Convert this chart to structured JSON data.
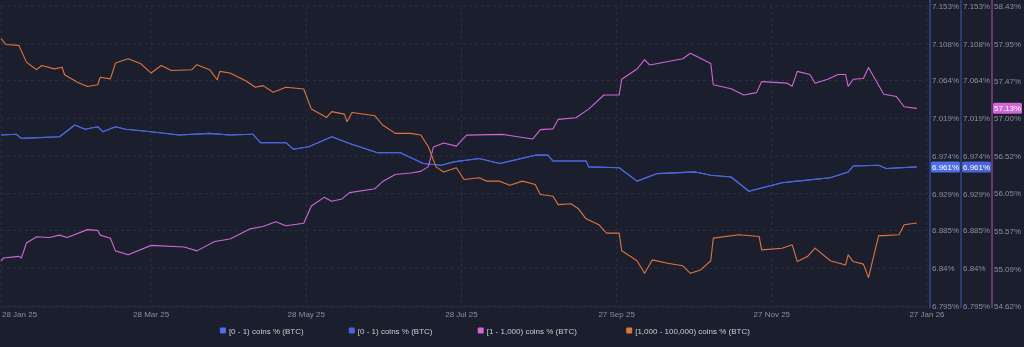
{
  "chart_data": {
    "type": "line",
    "xlim": [
      "2025-01-28",
      "2026-01-27"
    ],
    "xticks": [
      {
        "value": "2025-01-28",
        "label": "28 Jan 25"
      },
      {
        "value": "2025-03-28",
        "label": "28 Mar 25"
      },
      {
        "value": "2025-05-28",
        "label": "28 May 25"
      },
      {
        "value": "2025-07-28",
        "label": "28 Jul 25"
      },
      {
        "value": "2025-09-27",
        "label": "27 Sep 25"
      },
      {
        "value": "2025-11-27",
        "label": "27 Nov 25"
      },
      {
        "value": "2026-01-27",
        "label": "27 Jan 26"
      }
    ],
    "ylim": [
      6.795,
      7.153
    ],
    "yticks": [
      {
        "value": 6.795,
        "label": "6.795%"
      },
      {
        "value": 6.84,
        "label": "6.84%"
      },
      {
        "value": 6.885,
        "label": "6.885%"
      },
      {
        "value": 6.929,
        "label": "6.929%"
      },
      {
        "value": 6.974,
        "label": "6.974%"
      },
      {
        "value": 7.019,
        "label": "7.019%"
      },
      {
        "value": 7.064,
        "label": "7.064%"
      },
      {
        "value": 7.108,
        "label": "7.108%"
      },
      {
        "value": 7.153,
        "label": "7.153%"
      }
    ],
    "y2lim": [
      6.795,
      7.153
    ],
    "y2ticks": [
      {
        "value": 6.795,
        "label": "6.795%"
      },
      {
        "value": 6.84,
        "label": "6.84%"
      },
      {
        "value": 6.885,
        "label": "6.885%"
      },
      {
        "value": 6.929,
        "label": "6.929%"
      },
      {
        "value": 6.974,
        "label": "6.974%"
      },
      {
        "value": 7.019,
        "label": "7.019%"
      },
      {
        "value": 7.064,
        "label": "7.064%"
      },
      {
        "value": 7.108,
        "label": "7.108%"
      },
      {
        "value": 7.153,
        "label": "7.153%"
      }
    ],
    "y3lim": [
      54.62,
      58.43
    ],
    "y3ticks": [
      {
        "value": 54.62,
        "label": "54.62%"
      },
      {
        "value": 55.09,
        "label": "55.09%"
      },
      {
        "value": 55.57,
        "label": "55.57%"
      },
      {
        "value": 56.05,
        "label": "56.05%"
      },
      {
        "value": 56.52,
        "label": "56.52%"
      },
      {
        "value": 57.0,
        "label": "57.00%"
      },
      {
        "value": 57.47,
        "label": "57.47%"
      },
      {
        "value": 57.95,
        "label": "57.95%"
      },
      {
        "value": 58.43,
        "label": "58.43%"
      }
    ],
    "grid": true,
    "legend": "bottom",
    "annotations": [
      "6.961%",
      "57.13%"
    ],
    "series": [
      {
        "name": "[0 - 1) coins % (BTC)",
        "color": "#4f6fe8",
        "axis": "y",
        "x": [
          "2025-01-28",
          "2025-02-03",
          "2025-02-05",
          "2025-02-20",
          "2025-02-26",
          "2025-03-02",
          "2025-03-07",
          "2025-03-09",
          "2025-03-14",
          "2025-03-18",
          "2025-03-28",
          "2025-04-08",
          "2025-04-20",
          "2025-04-28",
          "2025-05-07",
          "2025-05-10",
          "2025-05-20",
          "2025-05-23",
          "2025-05-29",
          "2025-06-07",
          "2025-06-14",
          "2025-06-25",
          "2025-07-04",
          "2025-07-13",
          "2025-07-20",
          "2025-07-25",
          "2025-08-04",
          "2025-08-12",
          "2025-08-26",
          "2025-08-31",
          "2025-09-02",
          "2025-09-15",
          "2025-09-16",
          "2025-09-28",
          "2025-10-05",
          "2025-10-13",
          "2025-10-28",
          "2025-11-03",
          "2025-11-11",
          "2025-11-18",
          "2025-12-01",
          "2025-12-07",
          "2025-12-20",
          "2025-12-27",
          "2025-12-29",
          "2026-01-08",
          "2026-01-11",
          "2026-01-23"
        ],
        "values": [
          6.999,
          7.0,
          6.995,
          6.997,
          7.011,
          7.006,
          7.009,
          7.003,
          7.009,
          7.006,
          7.003,
          6.999,
          7.001,
          6.999,
          7.0,
          6.99,
          6.99,
          6.982,
          6.985,
          6.997,
          6.989,
          6.978,
          6.978,
          6.965,
          6.963,
          6.967,
          6.971,
          6.965,
          6.975,
          6.975,
          6.968,
          6.968,
          6.961,
          6.96,
          6.944,
          6.953,
          6.955,
          6.951,
          6.949,
          6.932,
          6.942,
          6.944,
          6.948,
          6.955,
          6.962,
          6.963,
          6.959,
          6.961
        ],
        "value_labels": [
          null,
          null,
          null,
          null,
          null,
          null,
          null,
          null,
          null,
          null,
          null,
          null,
          null,
          null,
          null,
          null,
          null,
          null,
          null,
          null,
          null,
          null,
          null,
          null,
          null,
          null,
          null,
          null,
          null,
          null,
          null,
          null,
          null,
          null,
          null,
          null,
          null,
          null,
          null,
          null,
          null,
          null,
          null,
          null,
          null,
          null,
          null,
          "6.961%"
        ]
      },
      {
        "name": "[0 - 1) coins % (BTC)",
        "color": "#4a64d8",
        "axis": "y2",
        "x": [
          "2025-01-28",
          "2025-02-03",
          "2025-02-05",
          "2025-02-20",
          "2025-02-26",
          "2025-03-02",
          "2025-03-07",
          "2025-03-09",
          "2025-03-14",
          "2025-03-18",
          "2025-03-28",
          "2025-04-08",
          "2025-04-20",
          "2025-04-28",
          "2025-05-07",
          "2025-05-10",
          "2025-05-20",
          "2025-05-23",
          "2025-05-29",
          "2025-06-07",
          "2025-06-14",
          "2025-06-25",
          "2025-07-04",
          "2025-07-13",
          "2025-07-20",
          "2025-07-25",
          "2025-08-04",
          "2025-08-12",
          "2025-08-26",
          "2025-08-31",
          "2025-09-02",
          "2025-09-15",
          "2025-09-16",
          "2025-09-28",
          "2025-10-05",
          "2025-10-13",
          "2025-10-28",
          "2025-11-03",
          "2025-11-11",
          "2025-11-18",
          "2025-12-01",
          "2025-12-07",
          "2025-12-20",
          "2025-12-27",
          "2025-12-29",
          "2026-01-08",
          "2026-01-11",
          "2026-01-23"
        ],
        "values": [
          6.999,
          7.0,
          6.995,
          6.997,
          7.011,
          7.006,
          7.009,
          7.003,
          7.009,
          7.006,
          7.003,
          6.999,
          7.001,
          6.999,
          7.0,
          6.99,
          6.99,
          6.982,
          6.985,
          6.997,
          6.989,
          6.978,
          6.978,
          6.965,
          6.963,
          6.967,
          6.971,
          6.965,
          6.975,
          6.975,
          6.968,
          6.968,
          6.961,
          6.96,
          6.944,
          6.953,
          6.955,
          6.951,
          6.949,
          6.932,
          6.942,
          6.944,
          6.948,
          6.955,
          6.962,
          6.963,
          6.959,
          6.961
        ]
      },
      {
        "name": "[1 - 1,000) coins % (BTC)",
        "color": "#d166d6",
        "axis": "y3",
        "x": [
          "2025-01-28",
          "2025-01-29",
          "2025-02-04",
          "2025-02-05",
          "2025-02-07",
          "2025-02-11",
          "2025-02-16",
          "2025-02-20",
          "2025-02-23",
          "2025-03-03",
          "2025-03-07",
          "2025-03-08",
          "2025-03-12",
          "2025-03-14",
          "2025-03-19",
          "2025-03-28",
          "2025-04-10",
          "2025-04-15",
          "2025-04-22",
          "2025-04-28",
          "2025-05-06",
          "2025-05-11",
          "2025-05-16",
          "2025-05-20",
          "2025-05-27",
          "2025-05-30",
          "2025-06-04",
          "2025-06-07",
          "2025-06-11",
          "2025-06-14",
          "2025-06-24",
          "2025-06-27",
          "2025-07-02",
          "2025-07-08",
          "2025-07-12",
          "2025-07-15",
          "2025-07-17",
          "2025-07-21",
          "2025-07-26",
          "2025-07-30",
          "2025-08-13",
          "2025-08-25",
          "2025-08-28",
          "2025-09-02",
          "2025-09-04",
          "2025-09-11",
          "2025-09-16",
          "2025-09-22",
          "2025-09-28",
          "2025-09-29",
          "2025-10-05",
          "2025-10-08",
          "2025-10-10",
          "2025-10-23",
          "2025-10-26",
          "2025-11-03",
          "2025-11-04",
          "2025-11-11",
          "2025-11-16",
          "2025-11-21",
          "2025-11-23",
          "2025-12-03",
          "2025-12-05",
          "2025-12-07",
          "2025-12-12",
          "2025-12-14",
          "2025-12-19",
          "2025-12-23",
          "2025-12-26",
          "2025-12-27",
          "2025-12-29",
          "2026-01-02",
          "2026-01-04",
          "2026-01-10",
          "2026-01-15",
          "2026-01-18",
          "2026-01-23"
        ],
        "values": [
          55.19,
          55.23,
          55.25,
          55.23,
          55.42,
          55.5,
          55.49,
          55.52,
          55.49,
          55.59,
          55.58,
          55.52,
          55.48,
          55.32,
          55.27,
          55.39,
          55.37,
          55.32,
          55.44,
          55.47,
          55.6,
          55.63,
          55.69,
          55.64,
          55.67,
          55.89,
          56.0,
          55.95,
          55.98,
          56.06,
          56.11,
          56.2,
          56.29,
          56.31,
          56.33,
          56.39,
          56.64,
          56.69,
          56.65,
          56.79,
          56.8,
          56.74,
          56.86,
          56.87,
          56.99,
          57.01,
          57.12,
          57.3,
          57.3,
          57.5,
          57.63,
          57.75,
          57.68,
          57.76,
          57.83,
          57.7,
          57.43,
          57.38,
          57.3,
          57.33,
          57.47,
          57.45,
          57.41,
          57.6,
          57.56,
          57.45,
          57.5,
          57.56,
          57.56,
          57.41,
          57.5,
          57.51,
          57.65,
          57.31,
          57.28,
          57.15,
          57.13
        ]
      },
      {
        "name": "[1,000 - 100,000) coins % (BTC)",
        "color": "#e0743c",
        "axis": "y",
        "x": [
          "2025-01-28",
          "2025-01-30",
          "2025-02-04",
          "2025-02-07",
          "2025-02-11",
          "2025-02-13",
          "2025-02-18",
          "2025-02-21",
          "2025-02-22",
          "2025-02-27",
          "2025-03-03",
          "2025-03-07",
          "2025-03-08",
          "2025-03-12",
          "2025-03-14",
          "2025-03-19",
          "2025-03-24",
          "2025-03-28",
          "2025-04-01",
          "2025-04-05",
          "2025-04-13",
          "2025-04-15",
          "2025-04-20",
          "2025-04-23",
          "2025-04-24",
          "2025-04-28",
          "2025-05-04",
          "2025-05-08",
          "2025-05-11",
          "2025-05-15",
          "2025-05-20",
          "2025-05-27",
          "2025-05-30",
          "2025-06-05",
          "2025-06-07",
          "2025-06-12",
          "2025-06-13",
          "2025-06-15",
          "2025-06-24",
          "2025-06-27",
          "2025-07-02",
          "2025-07-08",
          "2025-07-12",
          "2025-07-15",
          "2025-07-18",
          "2025-07-21",
          "2025-07-26",
          "2025-07-29",
          "2025-08-04",
          "2025-08-07",
          "2025-08-12",
          "2025-08-16",
          "2025-08-21",
          "2025-08-26",
          "2025-08-28",
          "2025-09-02",
          "2025-09-04",
          "2025-09-09",
          "2025-09-12",
          "2025-09-15",
          "2025-09-20",
          "2025-09-23",
          "2025-09-28",
          "2025-09-29",
          "2025-10-05",
          "2025-10-08",
          "2025-10-11",
          "2025-10-17",
          "2025-10-23",
          "2025-10-26",
          "2025-10-30",
          "2025-11-03",
          "2025-11-04",
          "2025-11-14",
          "2025-11-22",
          "2025-11-23",
          "2025-12-01",
          "2025-12-05",
          "2025-12-07",
          "2025-12-11",
          "2025-12-14",
          "2025-12-20",
          "2025-12-26",
          "2025-12-27",
          "2025-12-29",
          "2026-01-02",
          "2026-01-04",
          "2026-01-08",
          "2026-01-10",
          "2026-01-16",
          "2026-01-18",
          "2026-01-23"
        ],
        "values": [
          7.114,
          7.107,
          7.106,
          7.086,
          7.077,
          7.082,
          7.078,
          7.08,
          7.071,
          7.062,
          7.057,
          7.059,
          7.068,
          7.066,
          7.085,
          7.09,
          7.084,
          7.073,
          7.082,
          7.076,
          7.077,
          7.083,
          7.077,
          7.065,
          7.075,
          7.073,
          7.064,
          7.056,
          7.058,
          7.05,
          7.056,
          7.054,
          7.03,
          7.02,
          7.027,
          7.024,
          7.015,
          7.026,
          7.022,
          7.011,
          7.001,
          7.001,
          6.999,
          6.985,
          6.961,
          6.955,
          6.96,
          6.946,
          6.948,
          6.944,
          6.944,
          6.939,
          6.944,
          6.94,
          6.928,
          6.926,
          6.916,
          6.917,
          6.911,
          6.899,
          6.892,
          6.882,
          6.882,
          6.861,
          6.849,
          6.834,
          6.85,
          6.846,
          6.843,
          6.834,
          6.838,
          6.849,
          6.876,
          6.88,
          6.878,
          6.862,
          6.864,
          6.868,
          6.848,
          6.854,
          6.864,
          6.849,
          6.844,
          6.856,
          6.848,
          6.845,
          6.829,
          6.879,
          6.879,
          6.88,
          6.892,
          6.894
        ]
      }
    ]
  }
}
